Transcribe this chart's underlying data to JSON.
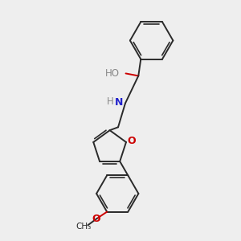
{
  "background_color": "#eeeeee",
  "bond_color": "#2a2a2a",
  "O_color": "#cc0000",
  "N_color": "#2222cc",
  "figsize": [
    3.0,
    3.0
  ],
  "dpi": 100,
  "xlim": [
    0,
    10
  ],
  "ylim": [
    0,
    10
  ]
}
